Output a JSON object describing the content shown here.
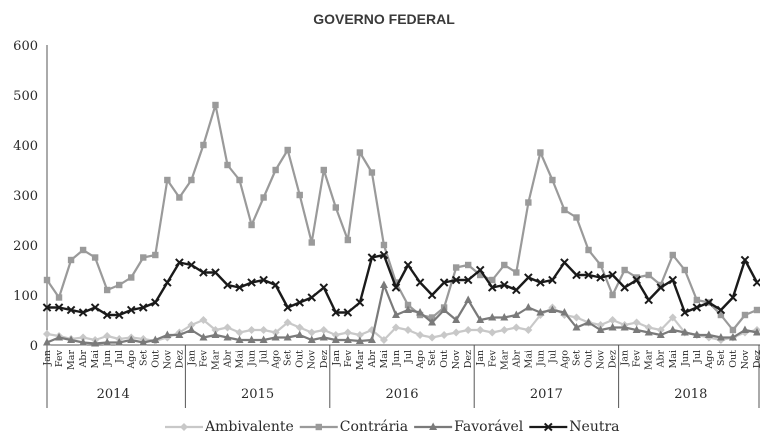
{
  "chart_data": {
    "type": "line",
    "title": "GOVERNO FEDERAL",
    "ylim": [
      0,
      600
    ],
    "yticks": [
      0,
      100,
      200,
      300,
      400,
      500,
      600
    ],
    "grid": false,
    "legend_position": "bottom",
    "years": [
      "2014",
      "2015",
      "2016",
      "2017",
      "2018"
    ],
    "months": [
      "Jan",
      "Fev",
      "Mar",
      "Abr",
      "Mai",
      "Jun",
      "Jul",
      "Ago",
      "Set",
      "Out",
      "Nov",
      "Dez"
    ],
    "categories": [
      "Jan",
      "Fev",
      "Mar",
      "Abr",
      "Mai",
      "Jun",
      "Jul",
      "Ago",
      "Set",
      "Out",
      "Nov",
      "Dez",
      "Jan",
      "Fev",
      "Mar",
      "Abr",
      "Mai",
      "Jun",
      "Jul",
      "Ago",
      "Set",
      "Out",
      "Nov",
      "Dez",
      "Jan",
      "Fev",
      "Mar",
      "Abr",
      "Mai",
      "Jun",
      "Jul",
      "Ago",
      "Set",
      "Out",
      "Nov",
      "Dez",
      "Jan",
      "Fev",
      "Mar",
      "Abr",
      "Mai",
      "Jun",
      "Jul",
      "Ago",
      "Set",
      "Out",
      "Nov",
      "Dez",
      "Jan",
      "Fev",
      "Mar",
      "Abr",
      "Mai",
      "Jun",
      "Jul",
      "Ago",
      "Set",
      "Out",
      "Nov",
      "Dez"
    ],
    "series": [
      {
        "name": "Ambivalente",
        "color": "#c8c8c8",
        "marker": "diamond",
        "values": [
          22,
          18,
          12,
          15,
          10,
          18,
          12,
          15,
          12,
          8,
          15,
          25,
          40,
          50,
          30,
          35,
          25,
          30,
          30,
          25,
          45,
          35,
          25,
          30,
          20,
          25,
          20,
          30,
          10,
          35,
          30,
          20,
          15,
          20,
          25,
          30,
          30,
          25,
          30,
          35,
          30,
          60,
          75,
          60,
          55,
          45,
          40,
          50,
          40,
          45,
          35,
          30,
          55,
          25,
          20,
          15,
          10,
          15,
          25,
          30
        ]
      },
      {
        "name": "Contrária",
        "color": "#9a9a9a",
        "marker": "square",
        "values": [
          130,
          95,
          170,
          190,
          175,
          110,
          120,
          135,
          175,
          180,
          330,
          295,
          330,
          400,
          480,
          360,
          330,
          240,
          295,
          350,
          390,
          300,
          205,
          350,
          275,
          210,
          385,
          345,
          200,
          125,
          80,
          60,
          55,
          75,
          155,
          160,
          140,
          130,
          160,
          145,
          285,
          385,
          330,
          270,
          255,
          190,
          160,
          100,
          150,
          135,
          140,
          120,
          180,
          150,
          90,
          85,
          60,
          30,
          60,
          70
        ]
      },
      {
        "name": "Favorável",
        "color": "#7a7a7a",
        "marker": "triangle",
        "values": [
          5,
          15,
          10,
          5,
          3,
          5,
          5,
          10,
          5,
          10,
          20,
          20,
          30,
          15,
          20,
          15,
          10,
          10,
          10,
          15,
          15,
          20,
          10,
          15,
          10,
          10,
          8,
          10,
          120,
          60,
          70,
          65,
          45,
          70,
          50,
          90,
          50,
          55,
          55,
          60,
          75,
          65,
          70,
          65,
          35,
          45,
          30,
          35,
          35,
          30,
          25,
          20,
          30,
          25,
          20,
          20,
          15,
          15,
          30,
          25
        ]
      },
      {
        "name": "Neutra",
        "color": "#1a1a1a",
        "marker": "x",
        "values": [
          75,
          75,
          70,
          65,
          75,
          60,
          60,
          70,
          75,
          85,
          125,
          165,
          160,
          145,
          145,
          120,
          115,
          125,
          130,
          120,
          75,
          85,
          95,
          115,
          65,
          65,
          85,
          175,
          180,
          115,
          160,
          125,
          100,
          125,
          130,
          130,
          150,
          115,
          120,
          110,
          135,
          125,
          130,
          165,
          140,
          140,
          135,
          140,
          115,
          130,
          90,
          115,
          130,
          65,
          75,
          85,
          70,
          95,
          170,
          125
        ]
      }
    ]
  }
}
